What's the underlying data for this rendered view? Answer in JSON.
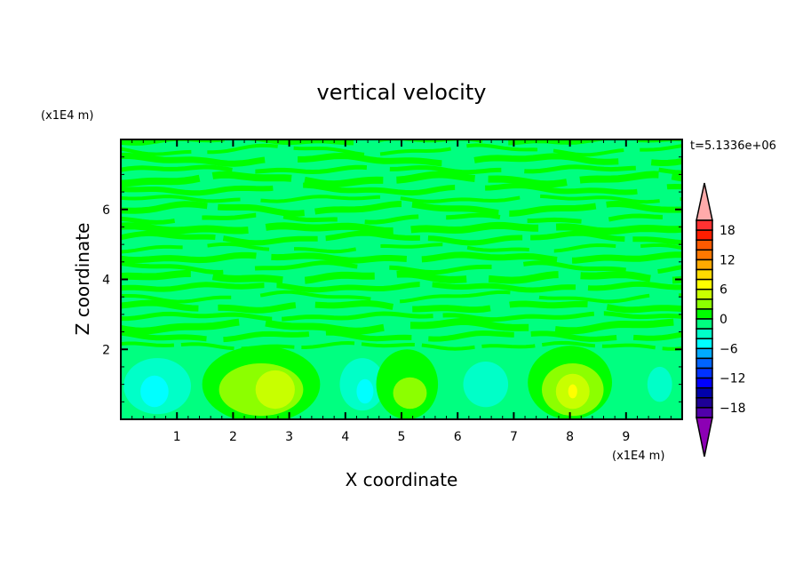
{
  "chart_data": {
    "type": "heatmap",
    "subtype": "filled-contour",
    "title": "vertical velocity",
    "xlabel": "X coordinate",
    "ylabel": "Z coordinate",
    "x_unit": "(x1E4 m)",
    "y_unit": "(x1E4 m)",
    "time_label": "t=5.1336e+06",
    "xlim": [
      0,
      10
    ],
    "ylim": [
      0,
      8
    ],
    "x_ticks": [
      "1",
      "2",
      "3",
      "4",
      "5",
      "6",
      "7",
      "8",
      "9"
    ],
    "y_ticks": [
      "2",
      "4",
      "6"
    ],
    "background_level_color": "#00ff80",
    "stripe_color": "#00ff00",
    "regions": [
      {
        "x": 0.65,
        "z": 0.95,
        "rx": 0.6,
        "rz": 0.8,
        "color": "#00ffc8"
      },
      {
        "x": 0.6,
        "z": 0.8,
        "rx": 0.25,
        "rz": 0.45,
        "color": "#00ffff"
      },
      {
        "x": 2.5,
        "z": 1.0,
        "rx": 1.05,
        "rz": 1.1,
        "color": "#00ff00"
      },
      {
        "x": 2.5,
        "z": 0.85,
        "rx": 0.75,
        "rz": 0.75,
        "color": "#8cff00"
      },
      {
        "x": 2.75,
        "z": 0.85,
        "rx": 0.35,
        "rz": 0.55,
        "color": "#c8ff00"
      },
      {
        "x": 4.3,
        "z": 1.0,
        "rx": 0.4,
        "rz": 0.75,
        "color": "#00ffc8"
      },
      {
        "x": 4.35,
        "z": 0.8,
        "rx": 0.15,
        "rz": 0.35,
        "color": "#00ffff"
      },
      {
        "x": 5.1,
        "z": 1.0,
        "rx": 0.55,
        "rz": 1.0,
        "color": "#00ff00"
      },
      {
        "x": 5.15,
        "z": 0.75,
        "rx": 0.3,
        "rz": 0.45,
        "color": "#8cff00"
      },
      {
        "x": 6.5,
        "z": 1.0,
        "rx": 0.4,
        "rz": 0.65,
        "color": "#00ffc8"
      },
      {
        "x": 8.0,
        "z": 1.05,
        "rx": 0.75,
        "rz": 1.05,
        "color": "#00ff00"
      },
      {
        "x": 8.05,
        "z": 0.85,
        "rx": 0.55,
        "rz": 0.75,
        "color": "#8cff00"
      },
      {
        "x": 8.05,
        "z": 0.8,
        "rx": 0.3,
        "rz": 0.5,
        "color": "#c8ff00"
      },
      {
        "x": 8.05,
        "z": 0.8,
        "rx": 0.08,
        "rz": 0.2,
        "color": "#ffff00"
      },
      {
        "x": 9.6,
        "z": 1.0,
        "rx": 0.22,
        "rz": 0.5,
        "color": "#00ffc8"
      }
    ],
    "colorbar": {
      "labels": [
        "18",
        "12",
        "6",
        "0",
        "-6",
        "-12",
        "-18"
      ],
      "top_arrow_color": "#ffaaaa",
      "bottom_arrow_color": "#8c00b4",
      "colors": [
        "#ff3232",
        "#ff1e00",
        "#ff5a00",
        "#ff7800",
        "#ffaa00",
        "#ffdc00",
        "#ffff00",
        "#c8ff00",
        "#8cff00",
        "#00ff00",
        "#00ff80",
        "#00ffc8",
        "#00ffff",
        "#00aaff",
        "#0064ff",
        "#0032ff",
        "#0000ff",
        "#0000aa",
        "#1e0096",
        "#5000aa"
      ]
    }
  }
}
